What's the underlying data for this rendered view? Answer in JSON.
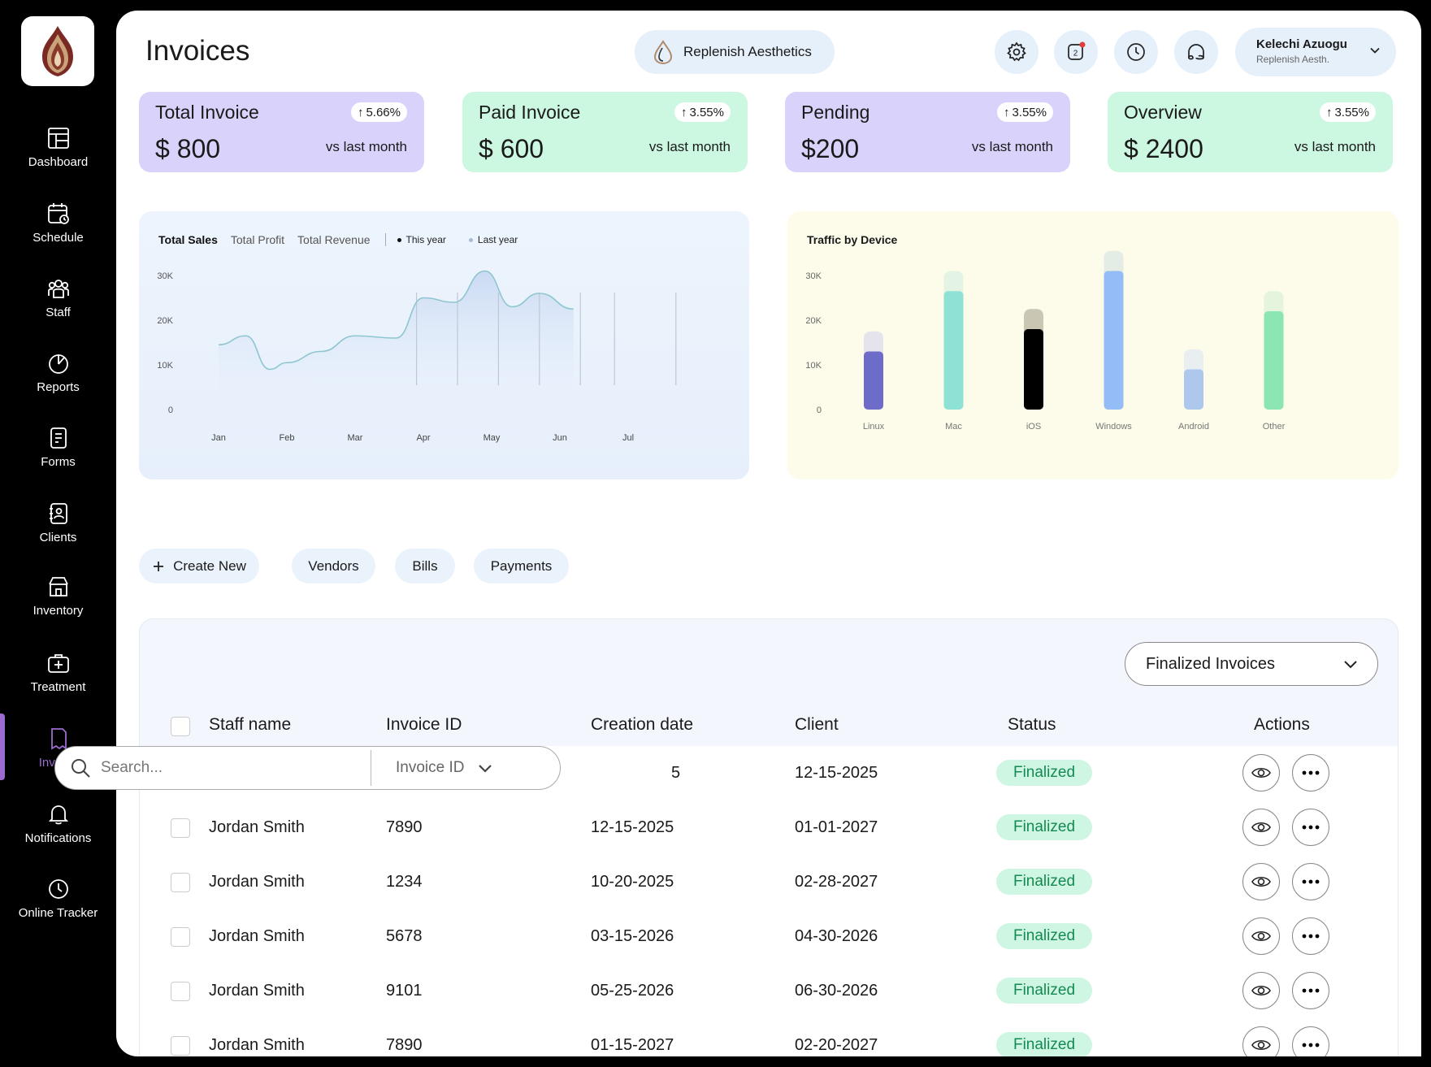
{
  "sidebar": {
    "items": [
      {
        "label": "Dashboard",
        "icon": "dashboard-icon"
      },
      {
        "label": "Schedule",
        "icon": "calendar-icon"
      },
      {
        "label": "Staff",
        "icon": "staff-icon"
      },
      {
        "label": "Reports",
        "icon": "pie-chart-icon"
      },
      {
        "label": "Forms",
        "icon": "form-icon"
      },
      {
        "label": "Clients",
        "icon": "contact-icon"
      },
      {
        "label": "Inventory",
        "icon": "store-icon"
      },
      {
        "label": "Treatment",
        "icon": "medical-kit-icon"
      },
      {
        "label": "Invoice",
        "icon": "invoice-icon",
        "active": true
      },
      {
        "label": "Notifications",
        "icon": "bell-icon"
      },
      {
        "label": "Online Tracker",
        "icon": "clock-icon"
      }
    ]
  },
  "header": {
    "title": "Invoices",
    "org_name": "Replenish Aesthetics",
    "notification_count": "2",
    "user": {
      "name": "Kelechi Azuogu",
      "org": "Replenish Aesth."
    }
  },
  "stats": [
    {
      "label": "Total Invoice",
      "value": "$ 800",
      "change": "5.66%",
      "sub": "vs last month",
      "color": "purple"
    },
    {
      "label": "Paid Invoice",
      "value": "$ 600",
      "change": "3.55%",
      "sub": "vs last month",
      "color": "green"
    },
    {
      "label": "Pending",
      "value": "$200",
      "change": "3.55%",
      "sub": "vs last month",
      "color": "purple"
    },
    {
      "label": "Overview",
      "value": "$ 2400",
      "change": "3.55%",
      "sub": "vs last month",
      "color": "green"
    }
  ],
  "sales_chart": {
    "tabs": [
      "Total Sales",
      "Total Profit",
      "Total Revenue"
    ],
    "legend": [
      {
        "label": "This year",
        "color": "#111111"
      },
      {
        "label": "Last year",
        "color": "#a9b9d6"
      }
    ]
  },
  "traffic_chart": {
    "title": "Traffic by Device"
  },
  "chart_data": [
    {
      "type": "area",
      "title": "",
      "categories": [
        "Jan",
        "Feb",
        "Mar",
        "Apr",
        "May",
        "Jun",
        "Jul"
      ],
      "yticks": [
        "0",
        "10K",
        "20K",
        "30K"
      ],
      "ylim": [
        0,
        30000
      ],
      "x": [
        0.0,
        0.4,
        0.75,
        1.0,
        1.5,
        2.0,
        2.6,
        3.0,
        3.45,
        3.9,
        4.3,
        4.7,
        5.2
      ],
      "series": [
        {
          "name": "This year",
          "values": [
            14500,
            16500,
            9000,
            10500,
            13000,
            16500,
            16000,
            25000,
            24000,
            31000,
            23000,
            26000,
            22500
          ]
        }
      ],
      "grid": false
    },
    {
      "type": "bar",
      "title": "Traffic by Device",
      "categories": [
        "Linux",
        "Mac",
        "iOS",
        "Windows",
        "Android",
        "Other"
      ],
      "yticks": [
        "0",
        "10K",
        "20K",
        "30K"
      ],
      "ylim": [
        0,
        30000
      ],
      "values": [
        13000,
        26500,
        18000,
        31000,
        9000,
        22000
      ],
      "totals": [
        17500,
        31000,
        22500,
        35500,
        13500,
        26500
      ],
      "colors": [
        "#6e6cc9",
        "#8ee2d5",
        "#000000",
        "#94bcf6",
        "#aec8ed",
        "#8ce6b4"
      ],
      "track_colors": [
        "#e5e3ec",
        "#e4f4e4",
        "#c9c6b3",
        "#e4ece6",
        "#e9eef0",
        "#e4f4dd"
      ]
    }
  ],
  "table_tabs": {
    "create": "Create New",
    "vendors": "Vendors",
    "bills": "Bills",
    "payments": "Payments"
  },
  "table": {
    "filter": "Finalized Invoices",
    "headers": [
      "Staff name",
      "Invoice ID",
      "Creation date",
      "Client",
      "Status",
      "Actions"
    ],
    "rows": [
      {
        "staff": "",
        "invoice_id": "",
        "created": "5",
        "client": "12-15-2025",
        "status": "Finalized"
      },
      {
        "staff": "Jordan Smith",
        "invoice_id": "7890",
        "created": "12-15-2025",
        "client": "01-01-2027",
        "status": "Finalized"
      },
      {
        "staff": "Jordan Smith",
        "invoice_id": "1234",
        "created": "10-20-2025",
        "client": "02-28-2027",
        "status": "Finalized"
      },
      {
        "staff": "Jordan Smith",
        "invoice_id": "5678",
        "created": "03-15-2026",
        "client": "04-30-2026",
        "status": "Finalized"
      },
      {
        "staff": "Jordan Smith",
        "invoice_id": "9101",
        "created": "05-25-2026",
        "client": "06-30-2026",
        "status": "Finalized"
      },
      {
        "staff": "Jordan Smith",
        "invoice_id": "7890",
        "created": "01-15-2027",
        "client": "02-20-2027",
        "status": "Finalized"
      }
    ]
  },
  "search": {
    "placeholder": "Search...",
    "type": "Invoice ID"
  },
  "colors": {
    "accent": "#9b6bd0",
    "status_bg": "#cff6e2",
    "status_text": "#148a52"
  }
}
